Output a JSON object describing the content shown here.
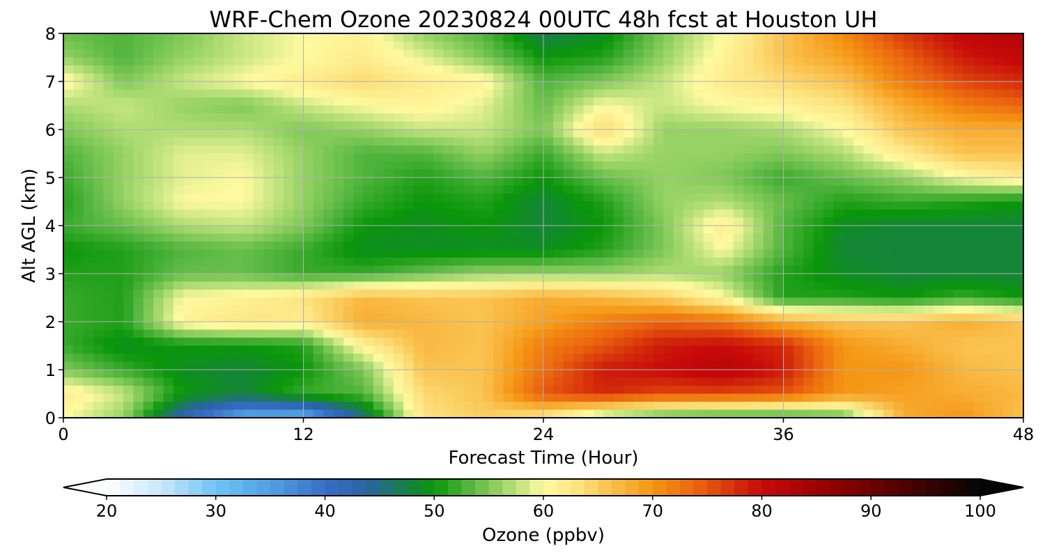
{
  "chart_data": {
    "type": "heatmap",
    "title": "WRF-Chem Ozone  20230824 00UTC 48h fcst at Houston UH",
    "xlabel": "Forecast Time (Hour)",
    "ylabel": "Alt AGL (km)",
    "xlim": [
      0,
      48
    ],
    "ylim": [
      0,
      8
    ],
    "x_ticks": [
      "0",
      "12",
      "24",
      "36",
      "48"
    ],
    "y_ticks": [
      "0",
      "1",
      "2",
      "3",
      "4",
      "5",
      "6",
      "7",
      "8"
    ],
    "grid": true,
    "colorbar": {
      "label": "Ozone  (ppbv)",
      "range": [
        20,
        100
      ],
      "ticks": [
        "20",
        "30",
        "40",
        "50",
        "60",
        "70",
        "80",
        "90",
        "100"
      ],
      "extend": "both"
    },
    "x": [
      0,
      3,
      6,
      9,
      12,
      15,
      18,
      21,
      24,
      27,
      30,
      33,
      36,
      39,
      42,
      45,
      48
    ],
    "y": [
      0,
      0.5,
      1,
      1.5,
      2,
      2.5,
      3,
      3.5,
      4,
      4.5,
      5,
      5.5,
      6,
      6.5,
      7,
      7.5,
      8
    ],
    "z": [
      [
        60,
        56,
        42,
        33,
        32,
        45,
        63,
        65,
        62,
        55,
        52,
        51,
        51,
        53,
        68,
        70,
        66
      ],
      [
        62,
        58,
        50,
        48,
        52,
        53,
        64,
        66,
        75,
        78,
        76,
        76,
        75,
        70,
        69,
        68,
        67
      ],
      [
        55,
        52,
        49,
        48,
        50,
        55,
        66,
        66,
        73,
        79,
        80,
        82,
        79,
        70,
        70,
        67,
        66
      ],
      [
        52,
        49,
        50,
        50,
        51,
        61,
        67,
        66,
        72,
        75,
        79,
        80,
        78,
        70,
        68,
        66,
        66
      ],
      [
        52,
        51,
        61,
        63,
        62,
        68,
        67,
        66,
        69,
        72,
        74,
        73,
        68,
        66,
        66,
        68,
        66
      ],
      [
        52,
        51,
        60,
        61,
        63,
        67,
        66,
        66,
        68,
        67,
        65,
        60,
        51,
        51,
        50,
        52,
        50
      ],
      [
        51,
        51,
        54,
        54,
        52,
        52,
        54,
        56,
        56,
        56,
        57,
        56,
        51,
        49,
        48,
        48,
        48
      ],
      [
        50,
        51,
        53,
        54,
        52,
        49,
        49,
        49,
        49,
        51,
        55,
        60,
        53,
        48,
        48,
        48,
        48
      ],
      [
        52,
        54,
        57,
        58,
        55,
        50,
        49,
        50,
        48,
        50,
        55,
        62,
        53,
        49,
        48,
        48,
        48
      ],
      [
        51,
        56,
        60,
        60,
        56,
        52,
        50,
        51,
        48,
        51,
        56,
        57,
        54,
        51,
        52,
        51,
        50
      ],
      [
        52,
        56,
        59,
        60,
        56,
        53,
        51,
        53,
        50,
        54,
        56,
        55,
        52,
        54,
        56,
        60,
        62
      ],
      [
        53,
        56,
        59,
        59,
        56,
        53,
        53,
        56,
        52,
        58,
        56,
        56,
        55,
        57,
        62,
        66,
        66
      ],
      [
        55,
        57,
        57,
        57,
        55,
        56,
        58,
        58,
        55,
        64,
        56,
        56,
        57,
        60,
        66,
        68,
        68
      ],
      [
        57,
        58,
        56,
        55,
        58,
        60,
        61,
        59,
        54,
        60,
        58,
        60,
        61,
        63,
        68,
        72,
        74
      ],
      [
        61,
        55,
        58,
        60,
        62,
        64,
        62,
        61,
        53,
        55,
        58,
        62,
        64,
        66,
        72,
        76,
        78
      ],
      [
        56,
        53,
        56,
        58,
        60,
        62,
        59,
        55,
        50,
        51,
        56,
        61,
        66,
        69,
        74,
        79,
        81
      ],
      [
        54,
        53,
        55,
        58,
        60,
        61,
        56,
        53,
        47,
        49,
        55,
        60,
        66,
        71,
        77,
        81,
        83
      ]
    ]
  }
}
